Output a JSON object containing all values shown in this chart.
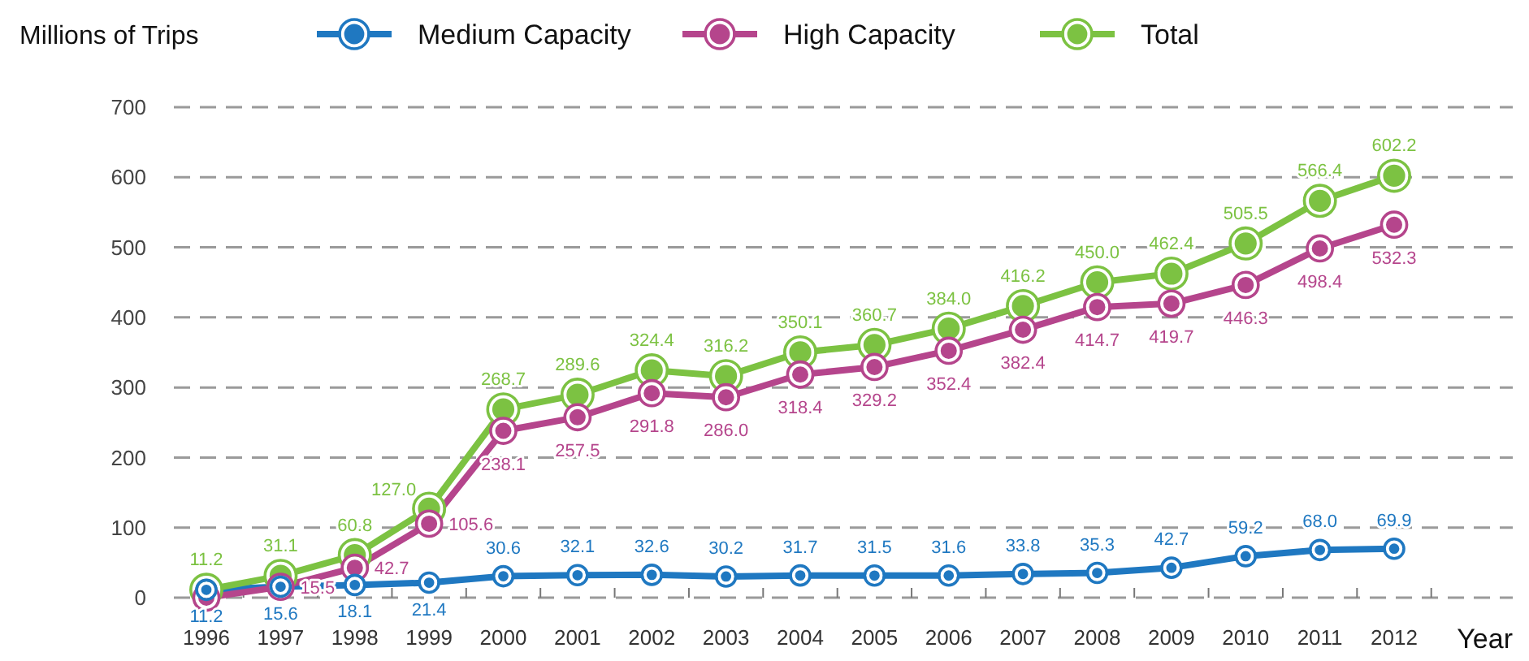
{
  "chart_data": {
    "type": "line",
    "ylabel": "Millions of Trips",
    "xlabel": "Year",
    "categories": [
      "1996",
      "1997",
      "1998",
      "1999",
      "2000",
      "2001",
      "2002",
      "2003",
      "2004",
      "2005",
      "2006",
      "2007",
      "2008",
      "2009",
      "2010",
      "2011",
      "2012"
    ],
    "series": [
      {
        "name": "Medium Capacity",
        "color": "#1f78c1",
        "values": [
          11.2,
          15.6,
          18.1,
          21.4,
          30.6,
          32.1,
          32.6,
          30.2,
          31.7,
          31.5,
          31.6,
          33.8,
          35.3,
          42.7,
          59.2,
          68.0,
          69.9
        ],
        "value_labels": [
          "11.2",
          "15.6",
          "18.1",
          "21.4",
          "30.6",
          "32.1",
          "32.6",
          "30.2",
          "31.7",
          "31.5",
          "31.6",
          "33.8",
          "35.3",
          "42.7",
          "59.2",
          "68.0",
          "69.9"
        ]
      },
      {
        "name": "High Capacity",
        "color": "#b5458c",
        "values": [
          0,
          15.5,
          42.7,
          105.6,
          238.1,
          257.5,
          291.8,
          286.0,
          318.4,
          329.2,
          352.4,
          382.4,
          414.7,
          419.7,
          446.3,
          498.4,
          532.3
        ],
        "value_labels": [
          null,
          "15.5",
          "42.7",
          "105.6",
          "238.1",
          "257.5",
          "291.8",
          "286.0",
          "318.4",
          "329.2",
          "352.4",
          "382.4",
          "414.7",
          "419.7",
          "446.3",
          "498.4",
          "532.3"
        ]
      },
      {
        "name": "Total",
        "color": "#7cc242",
        "values": [
          11.2,
          31.1,
          60.8,
          127.0,
          268.7,
          289.6,
          324.4,
          316.2,
          350.1,
          360.7,
          384.0,
          416.2,
          450.0,
          462.4,
          505.5,
          566.4,
          602.2
        ],
        "value_labels": [
          "11.2",
          "31.1",
          "60.8",
          "127.0",
          "268.7",
          "289.6",
          "324.4",
          "316.2",
          "350.1",
          "360.7",
          "384.0",
          "416.2",
          "450.0",
          "462.4",
          "505.5",
          "566.4",
          "602.2"
        ]
      }
    ],
    "ylim": [
      0,
      700
    ],
    "yticks": [
      0,
      100,
      200,
      300,
      400,
      500,
      600,
      700
    ],
    "grid": "y",
    "legend": "top",
    "marker": "circle",
    "line_style": "solid"
  }
}
